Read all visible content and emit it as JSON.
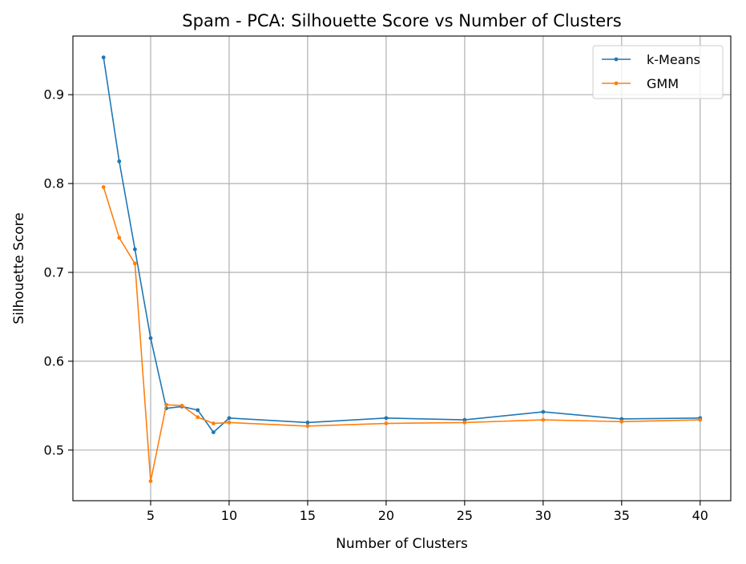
{
  "chart_data": {
    "type": "line",
    "title": "Spam - PCA: Silhouette Score vs Number of Clusters",
    "xlabel": "Number of Clusters",
    "ylabel": "Silhouette Score",
    "xlim": [
      0.05,
      41.95
    ],
    "ylim": [
      0.443,
      0.966
    ],
    "xticks": [
      5,
      10,
      15,
      20,
      25,
      30,
      35,
      40
    ],
    "yticks": [
      0.5,
      0.6,
      0.7,
      0.8,
      0.9
    ],
    "xtick_labels": [
      "5",
      "10",
      "15",
      "20",
      "25",
      "30",
      "35",
      "40"
    ],
    "ytick_labels": [
      "0.5",
      "0.6",
      "0.7",
      "0.8",
      "0.9"
    ],
    "grid": true,
    "legend_position": "upper right",
    "x": [
      2,
      3,
      4,
      5,
      6,
      7,
      8,
      9,
      10,
      15,
      20,
      25,
      30,
      35,
      40
    ],
    "series": [
      {
        "name": "k-Means",
        "color": "#1f77b4",
        "values": [
          0.942,
          0.825,
          0.726,
          0.626,
          0.547,
          0.549,
          0.545,
          0.52,
          0.536,
          0.531,
          0.536,
          0.534,
          0.543,
          0.535,
          0.536
        ]
      },
      {
        "name": "GMM",
        "color": "#ff7f0e",
        "values": [
          0.796,
          0.739,
          0.71,
          0.465,
          0.551,
          0.55,
          0.537,
          0.53,
          0.531,
          0.527,
          0.53,
          0.531,
          0.534,
          0.532,
          0.534
        ]
      }
    ]
  }
}
